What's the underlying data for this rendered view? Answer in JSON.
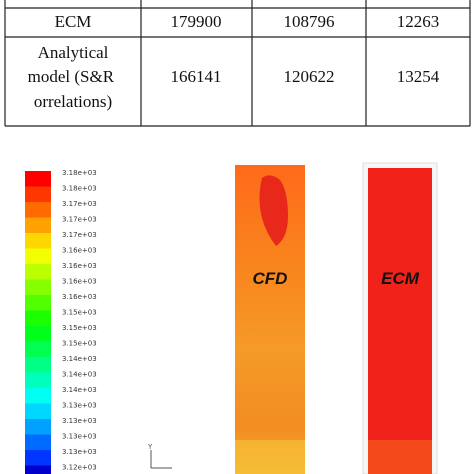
{
  "table": {
    "rows": [
      [
        "ECM",
        "179900",
        "108796",
        "12263"
      ],
      [
        "Analytical model (S&R correlations)",
        "166141",
        "120622",
        "13254"
      ]
    ]
  },
  "colorbar": {
    "labels": [
      "3.18e+03",
      "3.18e+03",
      "3.17e+03",
      "3.17e+03",
      "3.17e+03",
      "3.16e+03",
      "3.16e+03",
      "3.16e+03",
      "3.16e+03",
      "3.15e+03",
      "3.15e+03",
      "3.15e+03",
      "3.14e+03",
      "3.14e+03",
      "3.14e+03",
      "3.13e+03",
      "3.13e+03",
      "3.13e+03",
      "3.13e+03",
      "3.12e+03"
    ]
  },
  "images": [
    {
      "label": "CFD"
    },
    {
      "label": "ECM"
    }
  ],
  "axis": {
    "y": "Y"
  }
}
